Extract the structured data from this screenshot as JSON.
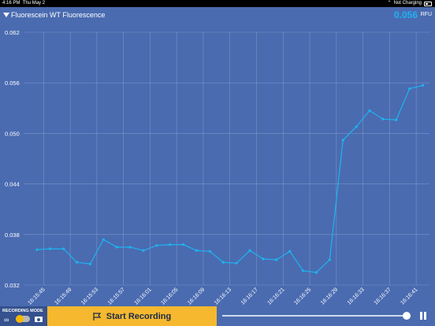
{
  "status_bar": {
    "time": "4:16 PM",
    "date": "Thu May 2",
    "charging": "Not Charging"
  },
  "header": {
    "sensor_name": "Fluorescein WT Fluorescence",
    "current_value": "0.056",
    "unit": "RFU"
  },
  "bottom_bar": {
    "recording_mode_label": "RECORDING MODE",
    "continuous_symbol": "∞",
    "start_recording_label": "Start Recording"
  },
  "colors": {
    "background": "#4a6bb0",
    "line": "#1fb3f0",
    "accent_button": "#f5b82e",
    "value_text": "#1fb3f0"
  },
  "chart_data": {
    "type": "line",
    "y_ticks": [
      "0.062",
      "0.056",
      "0.050",
      "0.044",
      "0.038",
      "0.032"
    ],
    "ylim": [
      0.032,
      0.062
    ],
    "x_ticks": [
      "16:15:45",
      "16:15:49",
      "16:15:53",
      "16:15:57",
      "16:16:01",
      "16:16:05",
      "16:16:09",
      "16:16:13",
      "16:16:17",
      "16:16:21",
      "16:16:25",
      "16:16:29",
      "16:16:33",
      "16:16:37",
      "16:16:41"
    ],
    "grid": true,
    "series": [
      {
        "x": [
          "16:15:44",
          "16:15:46",
          "16:15:48",
          "16:15:50",
          "16:15:52",
          "16:15:54",
          "16:15:56",
          "16:15:58",
          "16:16:00",
          "16:16:02",
          "16:16:04",
          "16:16:06",
          "16:16:08",
          "16:16:10",
          "16:16:12",
          "16:16:14",
          "16:16:16",
          "16:16:18",
          "16:16:20",
          "16:16:22",
          "16:16:24",
          "16:16:26",
          "16:16:28",
          "16:16:30",
          "16:16:32",
          "16:16:34",
          "16:16:36",
          "16:16:38",
          "16:16:40",
          "16:16:42"
        ],
        "values": [
          0.0362,
          0.0363,
          0.0363,
          0.0347,
          0.0345,
          0.0374,
          0.0365,
          0.0365,
          0.0361,
          0.0367,
          0.0368,
          0.0368,
          0.0361,
          0.036,
          0.0347,
          0.0346,
          0.0361,
          0.0351,
          0.035,
          0.036,
          0.0337,
          0.0335,
          0.035,
          0.0492,
          0.0508,
          0.0527,
          0.0517,
          0.0516,
          0.0553,
          0.0557
        ]
      }
    ]
  }
}
